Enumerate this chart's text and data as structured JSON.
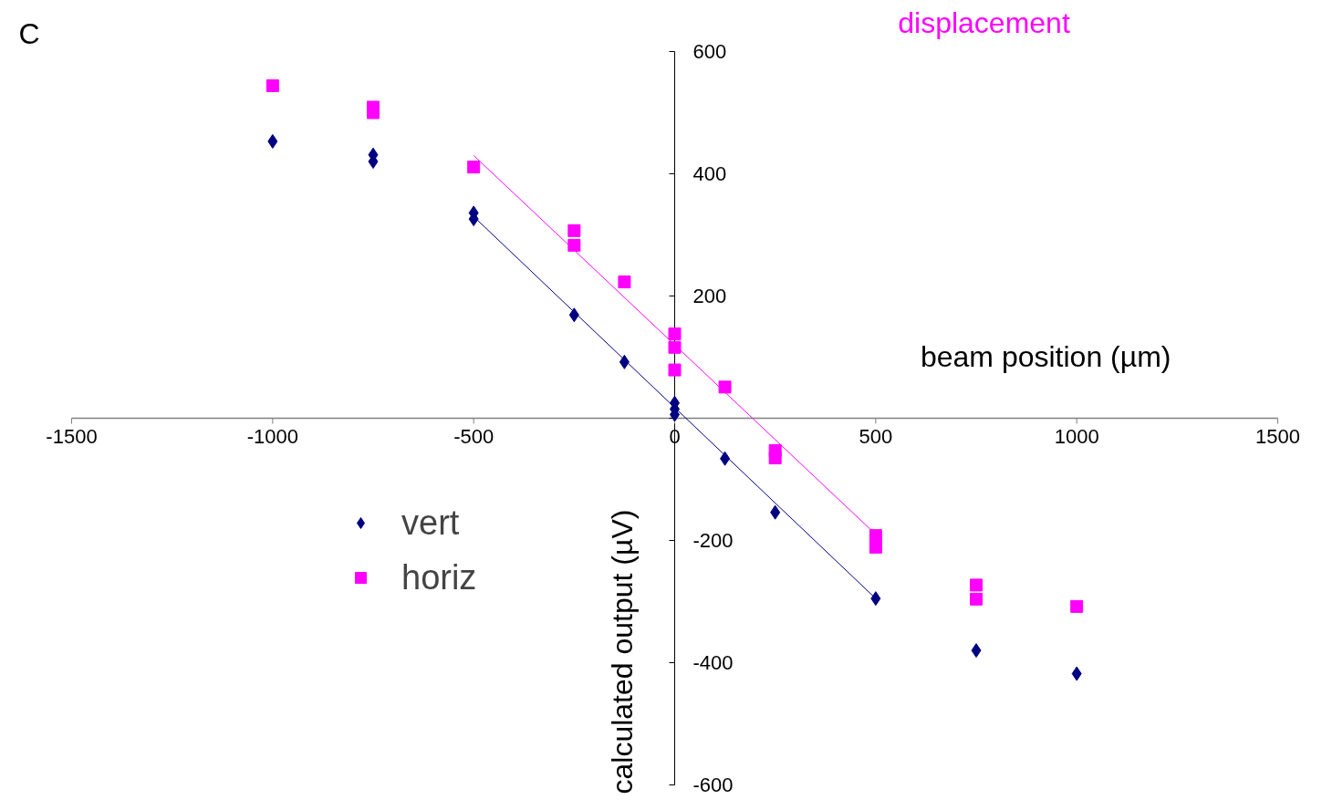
{
  "chart_data": {
    "type": "scatter",
    "xlabel": "beam position (µm)",
    "ylabel": "calculated output (µV)",
    "annotations": [
      "C",
      "displacement"
    ],
    "xlim": [
      -1500,
      1500
    ],
    "ylim": [
      -600,
      600
    ],
    "xticks": [
      -1500,
      -1000,
      -500,
      0,
      500,
      1000,
      1500
    ],
    "yticks": [
      -600,
      -400,
      -200,
      {
        "value": 0,
        "label": null
      },
      200,
      400,
      600
    ],
    "grid": false,
    "legend": "left",
    "series": [
      {
        "name": "vert",
        "color": "#000080",
        "marker": "diamond",
        "x": [
          -1000,
          -750,
          -750,
          -500,
          -500,
          -250,
          -125,
          0,
          0,
          0,
          125,
          250,
          500,
          750,
          1000
        ],
        "values": [
          453,
          431,
          420,
          336,
          326,
          169,
          92,
          25,
          15,
          6,
          -66,
          -154,
          -295,
          -380,
          -418
        ]
      },
      {
        "name": "horiz",
        "color": "#ff00ff",
        "marker": "square",
        "x": [
          -1000,
          -750,
          -750,
          -500,
          -250,
          -250,
          -125,
          0,
          0,
          0,
          125,
          250,
          250,
          500,
          500,
          750,
          750,
          1000
        ],
        "values": [
          544,
          509,
          500,
          411,
          307,
          283,
          223,
          138,
          116,
          79,
          51,
          -53,
          -65,
          -192,
          -211,
          -273,
          -296,
          -308
        ]
      },
      {
        "type": "line",
        "color": "#000080",
        "x": [
          -500,
          500
        ],
        "values": [
          330,
          -295
        ]
      },
      {
        "type": "line",
        "color": "#ff00ff",
        "x": [
          -500,
          500
        ],
        "values": [
          430,
          -190
        ]
      }
    ]
  }
}
